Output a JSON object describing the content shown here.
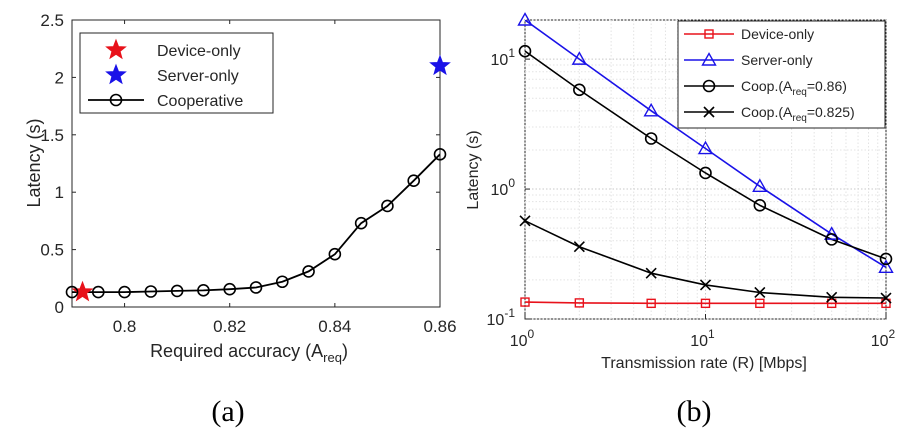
{
  "chart_data": [
    {
      "type": "line",
      "caption": "(a)",
      "xlabel": "Required accuracy (A",
      "xlabel_sub": "req",
      "xlabel_tail": ")",
      "ylabel": "Latency (s)",
      "xlim": [
        0.79,
        0.86
      ],
      "ylim": [
        0,
        2.5
      ],
      "xticks": [
        0.8,
        0.82,
        0.84,
        0.86
      ],
      "xtick_labels": [
        "0.8",
        "0.82",
        "0.84",
        "0.86"
      ],
      "yticks": [
        0,
        0.5,
        1,
        1.5,
        2,
        2.5
      ],
      "ytick_labels": [
        "0",
        "0.5",
        "1",
        "1.5",
        "2",
        "2.5"
      ],
      "grid": false,
      "legend_position": "top-left",
      "series": [
        {
          "name": "Device-only",
          "marker": "star",
          "color": "#e8121b",
          "line": false,
          "x": [
            0.792
          ],
          "y": [
            0.13
          ]
        },
        {
          "name": "Server-only",
          "marker": "star",
          "color": "#1a12e8",
          "line": false,
          "x": [
            0.86
          ],
          "y": [
            2.1
          ]
        },
        {
          "name": "Cooperative",
          "marker": "circle",
          "color": "#000000",
          "line": true,
          "x": [
            0.79,
            0.795,
            0.8,
            0.805,
            0.81,
            0.815,
            0.82,
            0.825,
            0.83,
            0.835,
            0.84,
            0.845,
            0.85,
            0.855,
            0.86
          ],
          "y": [
            0.13,
            0.13,
            0.13,
            0.135,
            0.14,
            0.145,
            0.155,
            0.17,
            0.22,
            0.31,
            0.46,
            0.73,
            0.88,
            1.1,
            1.33
          ]
        }
      ]
    },
    {
      "type": "line",
      "caption": "(b)",
      "xlabel": "Transmission rate (R) [Mbps]",
      "ylabel": "Latency (s)",
      "xscale": "log",
      "yscale": "log",
      "xlim": [
        1,
        100
      ],
      "ylim": [
        0.1,
        20
      ],
      "xtick_labels": [
        {
          "base": "10",
          "exp": "0"
        },
        {
          "base": "10",
          "exp": "1"
        },
        {
          "base": "10",
          "exp": "2"
        }
      ],
      "ytick_labels": [
        {
          "base": "10",
          "exp": "-1"
        },
        {
          "base": "10",
          "exp": "0"
        },
        {
          "base": "10",
          "exp": "1"
        }
      ],
      "grid": true,
      "legend_position": "top-right",
      "series": [
        {
          "name": "Device-only",
          "marker": "square",
          "color": "#e8121b",
          "x": [
            1,
            2,
            5,
            10,
            20,
            50,
            100
          ],
          "y": [
            0.135,
            0.133,
            0.132,
            0.132,
            0.132,
            0.132,
            0.132
          ]
        },
        {
          "name": "Server-only",
          "marker": "triangle",
          "color": "#1a12e8",
          "x": [
            1,
            2,
            5,
            10,
            20,
            50,
            100
          ],
          "y": [
            20,
            10,
            4,
            2.05,
            1.05,
            0.45,
            0.25
          ]
        },
        {
          "name": "Coop.(A",
          "name_sub": "req",
          "name_tail": "=0.86)",
          "marker": "circle",
          "color": "#000000",
          "x": [
            1,
            2,
            5,
            10,
            20,
            50,
            100
          ],
          "y": [
            11.5,
            5.8,
            2.45,
            1.33,
            0.75,
            0.41,
            0.29
          ]
        },
        {
          "name": "Coop.(A",
          "name_sub": "req",
          "name_tail": "=0.825)",
          "marker": "x",
          "color": "#000000",
          "x": [
            1,
            2,
            5,
            10,
            20,
            50,
            100
          ],
          "y": [
            0.57,
            0.36,
            0.225,
            0.183,
            0.16,
            0.147,
            0.145
          ]
        }
      ]
    }
  ]
}
